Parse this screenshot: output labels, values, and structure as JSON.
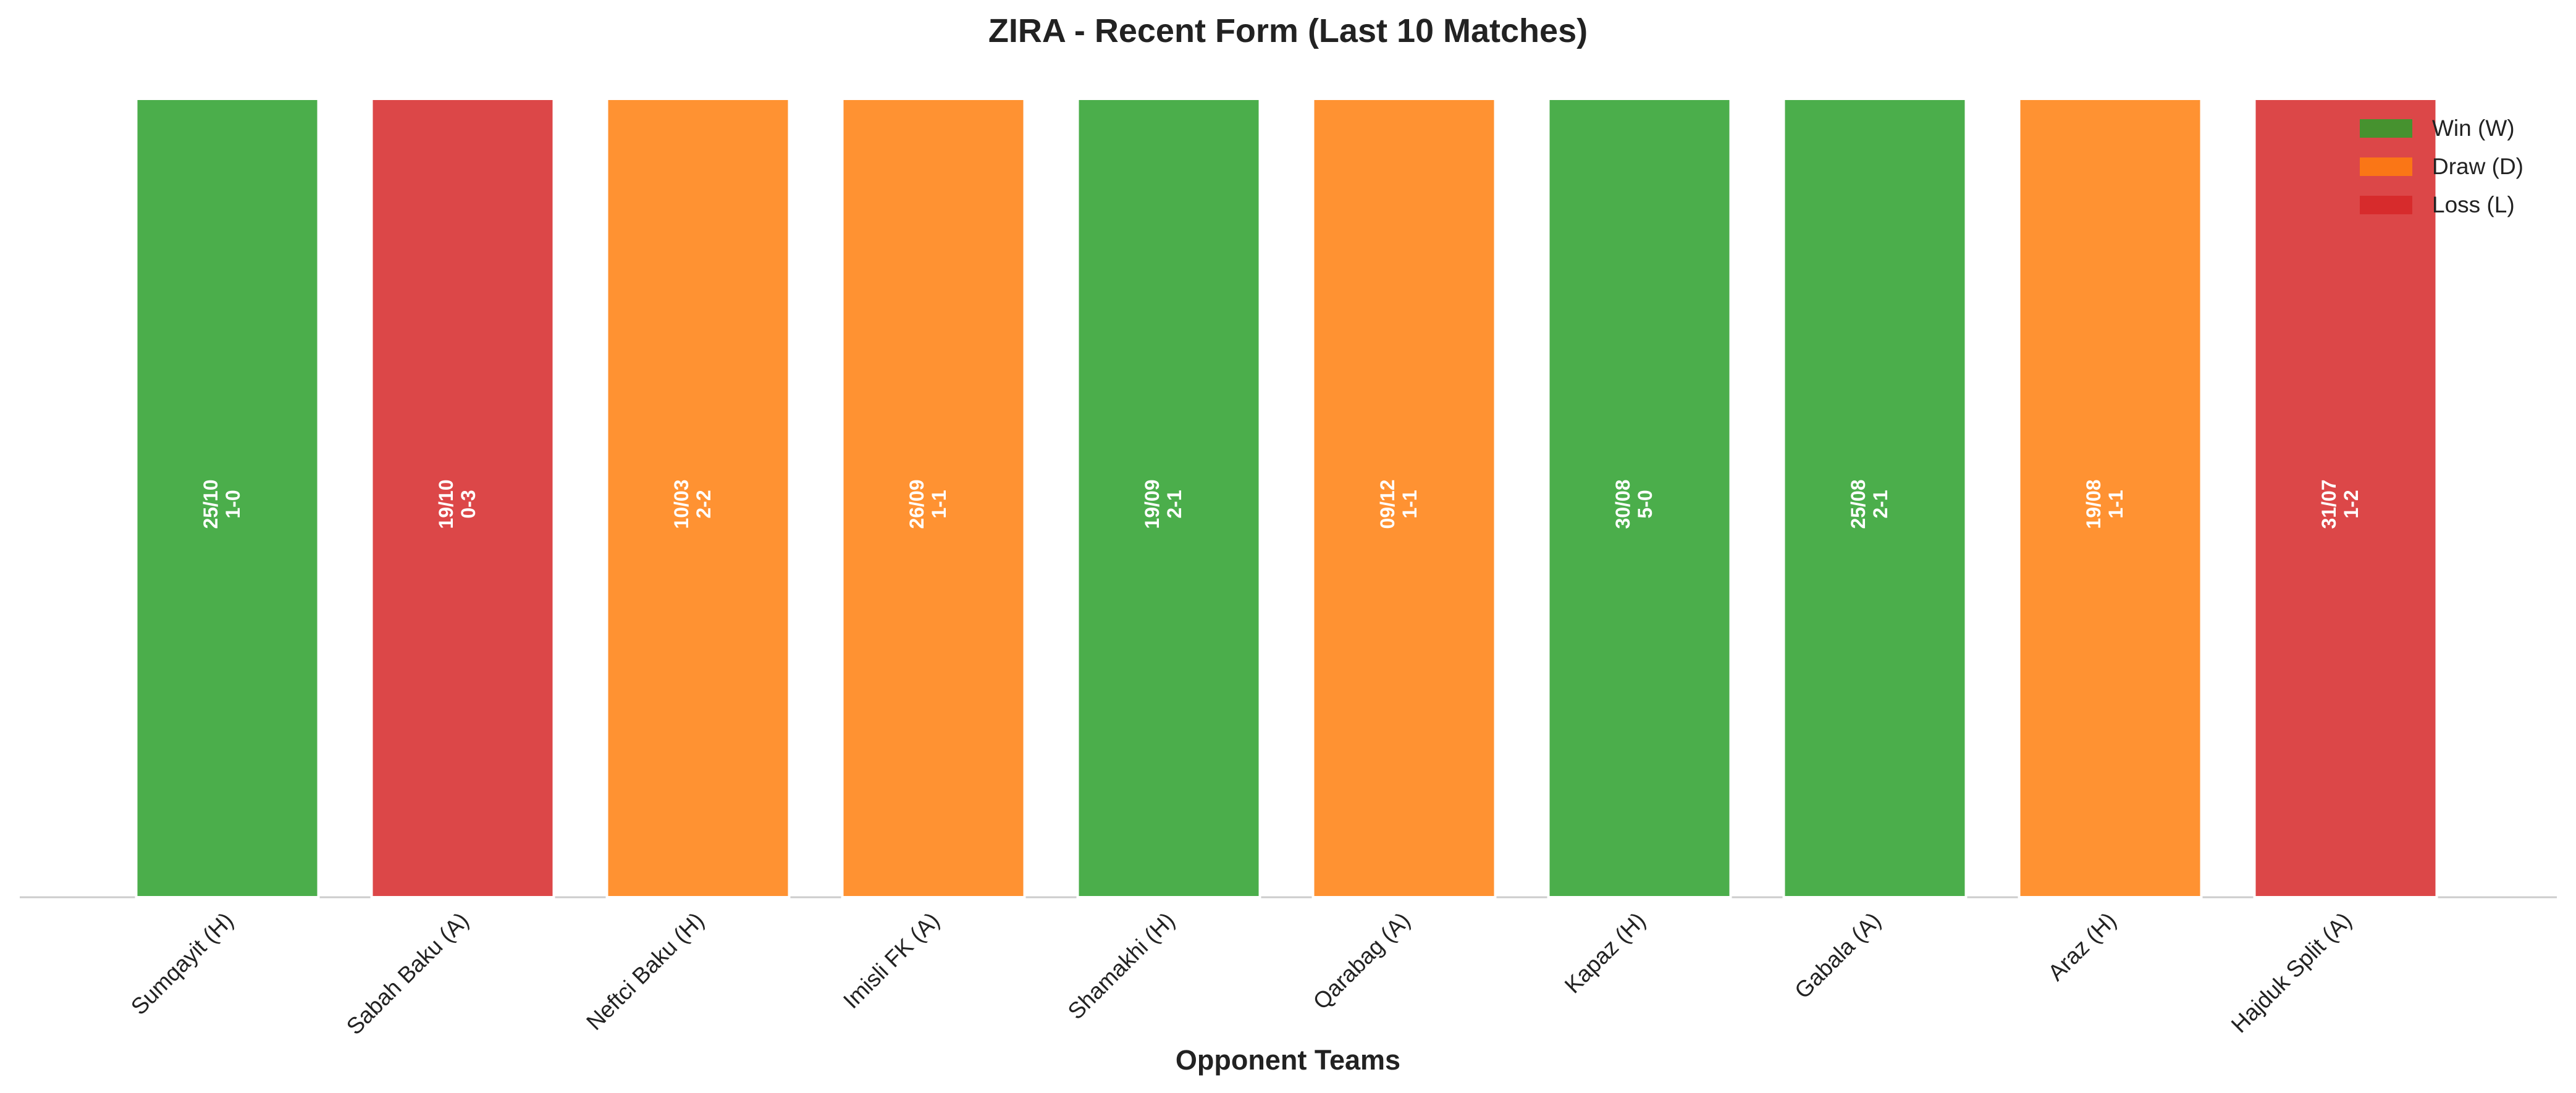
{
  "chart_data": {
    "type": "bar",
    "title": "ZIRA - Recent Form (Last 10 Matches)",
    "x_label": "Opponent Teams",
    "categories": [
      "Sumqayit (H)",
      "Sabah Baku (A)",
      "Neftci Baku (H)",
      "Imisli FK (A)",
      "Shamakhi (H)",
      "Qarabag (A)",
      "Kapaz (H)",
      "Gabala (A)",
      "Araz (H)",
      "Hajduk Split (A)"
    ],
    "dates": [
      "25/10",
      "19/10",
      "10/03",
      "26/09",
      "19/09",
      "09/12",
      "30/08",
      "25/08",
      "19/08",
      "31/07"
    ],
    "scores": [
      "1-0",
      "0-3",
      "2-2",
      "1-1",
      "2-1",
      "1-1",
      "5-0",
      "2-1",
      "1-1",
      "1-2"
    ],
    "series": [
      {
        "name": "Win (W)",
        "color": "#2ca02c",
        "values": [
          1,
          null,
          null,
          null,
          1,
          null,
          1,
          1,
          null,
          null
        ]
      },
      {
        "name": "Draw (D)",
        "color": "#ff7f0e",
        "values": [
          null,
          null,
          1,
          1,
          null,
          1,
          null,
          null,
          1,
          null
        ]
      },
      {
        "name": "Loss (L)",
        "color": "#d62728",
        "values": [
          null,
          1,
          null,
          null,
          null,
          null,
          null,
          null,
          null,
          1
        ]
      }
    ],
    "ylim": [
      0,
      1
    ],
    "legend": "upper right"
  }
}
